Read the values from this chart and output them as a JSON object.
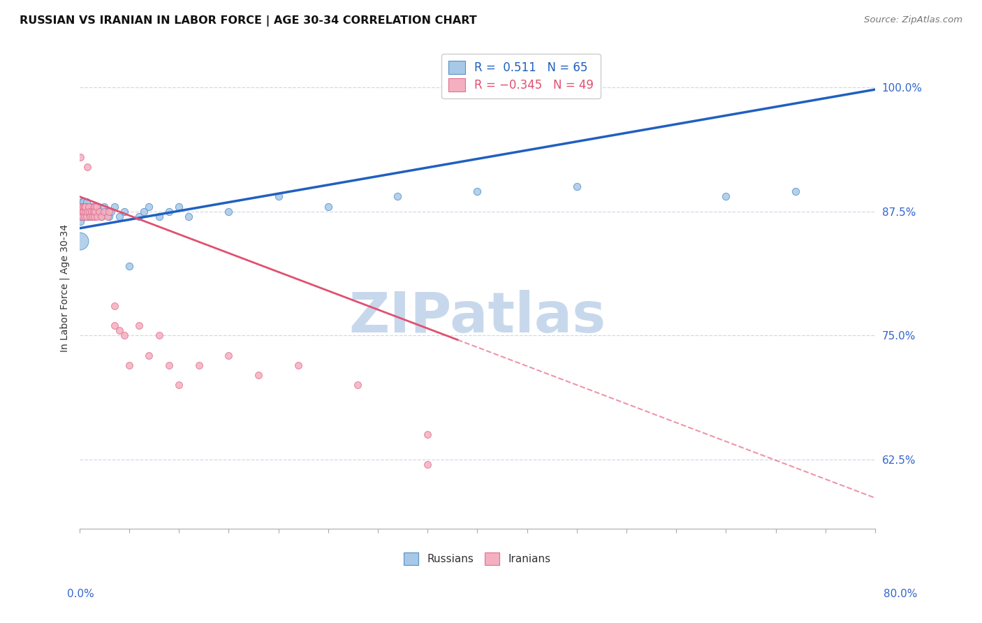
{
  "title": "RUSSIAN VS IRANIAN IN LABOR FORCE | AGE 30-34 CORRELATION CHART",
  "source": "Source: ZipAtlas.com",
  "ylabel": "In Labor Force | Age 30-34",
  "right_yticks": [
    0.625,
    0.75,
    0.875,
    1.0
  ],
  "right_yticklabels": [
    "62.5%",
    "75.0%",
    "87.5%",
    "100.0%"
  ],
  "xlim": [
    0.0,
    0.8
  ],
  "ylim": [
    0.555,
    1.04
  ],
  "legend_russian": "R =  0.511   N = 65",
  "legend_iranian": "R = −0.345   N = 49",
  "russian_color": "#a8c8e8",
  "iranian_color": "#f4b0c0",
  "russian_edge_color": "#5590c8",
  "iranian_edge_color": "#e07090",
  "russian_line_color": "#2060c0",
  "iranian_line_color": "#e05070",
  "russian_line_slope": 0.175,
  "russian_line_intercept": 0.858,
  "iranian_line_slope": -0.38,
  "iranian_line_intercept": 0.89,
  "grid_color": "#d0d8e8",
  "watermark_color": "#c8d8ec",
  "russians_x": [
    0.001,
    0.001,
    0.001,
    0.001,
    0.002,
    0.002,
    0.002,
    0.002,
    0.002,
    0.003,
    0.003,
    0.003,
    0.003,
    0.003,
    0.004,
    0.004,
    0.004,
    0.005,
    0.005,
    0.005,
    0.005,
    0.006,
    0.006,
    0.006,
    0.007,
    0.007,
    0.008,
    0.008,
    0.009,
    0.01,
    0.01,
    0.011,
    0.012,
    0.013,
    0.014,
    0.015,
    0.015,
    0.016,
    0.017,
    0.018,
    0.02,
    0.022,
    0.025,
    0.027,
    0.03,
    0.032,
    0.035,
    0.04,
    0.045,
    0.05,
    0.06,
    0.065,
    0.07,
    0.08,
    0.09,
    0.1,
    0.11,
    0.15,
    0.2,
    0.25,
    0.32,
    0.4,
    0.5,
    0.65,
    0.72
  ],
  "russians_y": [
    0.875,
    0.88,
    0.87,
    0.865,
    0.88,
    0.875,
    0.87,
    0.885,
    0.875,
    0.88,
    0.875,
    0.87,
    0.88,
    0.875,
    0.885,
    0.88,
    0.875,
    0.88,
    0.875,
    0.87,
    0.875,
    0.88,
    0.875,
    0.87,
    0.885,
    0.88,
    0.87,
    0.875,
    0.88,
    0.87,
    0.875,
    0.88,
    0.87,
    0.875,
    0.88,
    0.875,
    0.87,
    0.88,
    0.875,
    0.88,
    0.875,
    0.87,
    0.88,
    0.875,
    0.87,
    0.875,
    0.88,
    0.87,
    0.875,
    0.82,
    0.87,
    0.875,
    0.88,
    0.87,
    0.875,
    0.88,
    0.87,
    0.875,
    0.89,
    0.88,
    0.89,
    0.895,
    0.9,
    0.89,
    0.895
  ],
  "iranians_x": [
    0.001,
    0.001,
    0.002,
    0.002,
    0.002,
    0.003,
    0.003,
    0.004,
    0.004,
    0.005,
    0.005,
    0.006,
    0.006,
    0.007,
    0.008,
    0.008,
    0.009,
    0.01,
    0.011,
    0.012,
    0.013,
    0.014,
    0.015,
    0.015,
    0.016,
    0.017,
    0.018,
    0.02,
    0.022,
    0.025,
    0.028,
    0.03,
    0.035,
    0.035,
    0.04,
    0.045,
    0.05,
    0.06,
    0.07,
    0.08,
    0.09,
    0.1,
    0.12,
    0.15,
    0.18,
    0.22,
    0.28,
    0.35,
    0.35
  ],
  "iranians_y": [
    0.88,
    0.93,
    0.875,
    0.87,
    0.88,
    0.875,
    0.87,
    0.88,
    0.875,
    0.88,
    0.87,
    0.875,
    0.88,
    0.87,
    0.875,
    0.92,
    0.88,
    0.875,
    0.87,
    0.875,
    0.87,
    0.875,
    0.88,
    0.87,
    0.875,
    0.88,
    0.87,
    0.875,
    0.87,
    0.875,
    0.87,
    0.875,
    0.76,
    0.78,
    0.755,
    0.75,
    0.72,
    0.76,
    0.73,
    0.75,
    0.72,
    0.7,
    0.72,
    0.73,
    0.71,
    0.72,
    0.7,
    0.65,
    0.62
  ],
  "title_fontsize": 11.5,
  "source_fontsize": 9.5
}
